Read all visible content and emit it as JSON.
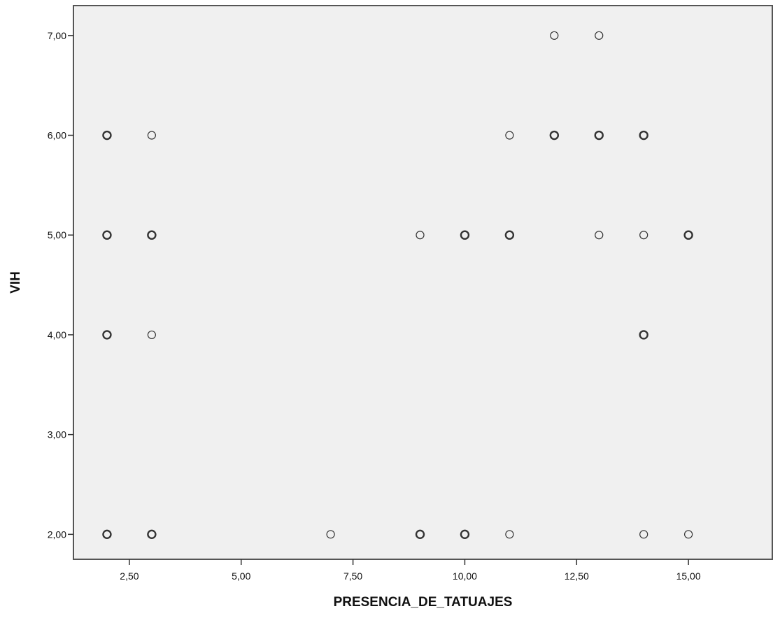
{
  "chart_data": {
    "type": "scatter",
    "xlabel": "PRESENCIA_DE_TATUAJES",
    "ylabel": "VIH",
    "xlim": [
      1.25,
      16.875
    ],
    "ylim": [
      1.75,
      7.3
    ],
    "x_ticks": [
      2.5,
      5.0,
      7.5,
      10.0,
      12.5,
      15.0
    ],
    "x_tick_labels": [
      "2,50",
      "5,00",
      "7,50",
      "10,00",
      "12,50",
      "15,00"
    ],
    "y_ticks": [
      2.0,
      3.0,
      4.0,
      5.0,
      6.0,
      7.0
    ],
    "y_tick_labels": [
      "2,00",
      "3,00",
      "4,00",
      "5,00",
      "6,00",
      "7,00"
    ],
    "grid": false,
    "colors": {
      "plot_background": "#f0f0f0",
      "frame": "#555555",
      "marker_stroke": "#333333"
    },
    "points": [
      {
        "x": 2,
        "y": 6,
        "bold": true
      },
      {
        "x": 3,
        "y": 6,
        "bold": false
      },
      {
        "x": 2,
        "y": 5,
        "bold": true
      },
      {
        "x": 3,
        "y": 5,
        "bold": true
      },
      {
        "x": 2,
        "y": 4,
        "bold": true
      },
      {
        "x": 3,
        "y": 4,
        "bold": false
      },
      {
        "x": 2,
        "y": 2,
        "bold": true
      },
      {
        "x": 3,
        "y": 2,
        "bold": true
      },
      {
        "x": 7,
        "y": 2,
        "bold": false
      },
      {
        "x": 9,
        "y": 2,
        "bold": true
      },
      {
        "x": 10,
        "y": 2,
        "bold": true
      },
      {
        "x": 11,
        "y": 2,
        "bold": false
      },
      {
        "x": 14,
        "y": 2,
        "bold": false
      },
      {
        "x": 15,
        "y": 2,
        "bold": false
      },
      {
        "x": 9,
        "y": 5,
        "bold": false
      },
      {
        "x": 10,
        "y": 5,
        "bold": true
      },
      {
        "x": 11,
        "y": 5,
        "bold": true
      },
      {
        "x": 13,
        "y": 5,
        "bold": false
      },
      {
        "x": 14,
        "y": 5,
        "bold": false
      },
      {
        "x": 15,
        "y": 5,
        "bold": true
      },
      {
        "x": 11,
        "y": 6,
        "bold": false
      },
      {
        "x": 12,
        "y": 6,
        "bold": true
      },
      {
        "x": 13,
        "y": 6,
        "bold": true
      },
      {
        "x": 14,
        "y": 6,
        "bold": true
      },
      {
        "x": 12,
        "y": 7,
        "bold": false
      },
      {
        "x": 13,
        "y": 7,
        "bold": false
      },
      {
        "x": 14,
        "y": 4,
        "bold": true
      }
    ]
  }
}
